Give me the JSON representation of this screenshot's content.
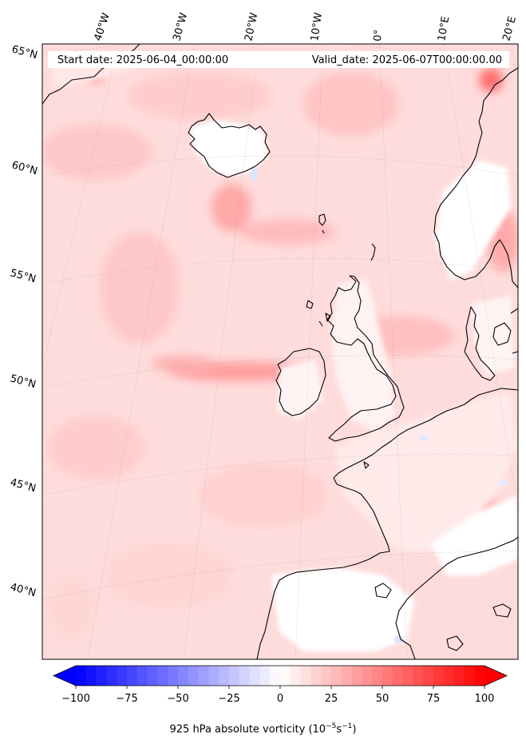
{
  "header": {
    "start_date": "Start date: 2025-06-04_00:00:00",
    "valid_date": "Valid_date: 2025-06-07T00:00:00.00"
  },
  "lon_labels": [
    "40°W",
    "30°W",
    "20°W",
    "10°W",
    "0°",
    "10°E",
    "20°E"
  ],
  "lat_labels": [
    "65°N",
    "60°N",
    "55°N",
    "50°N",
    "45°N",
    "40°N"
  ],
  "colorbar": {
    "min": -100,
    "max": 100,
    "ticks": [
      "−100",
      "−75",
      "−50",
      "−25",
      "0",
      "25",
      "50",
      "75",
      "100"
    ],
    "title_main": "925 hPa absolute vorticity (10",
    "title_exp1": "−5",
    "title_mid": "s",
    "title_exp2": "−1",
    "title_end": ")"
  },
  "colors": {
    "coast": "#000000",
    "low": "#0000ff",
    "mid": "#ffffff",
    "high": "#ff0000",
    "background_field": "#ffd9d9"
  }
}
